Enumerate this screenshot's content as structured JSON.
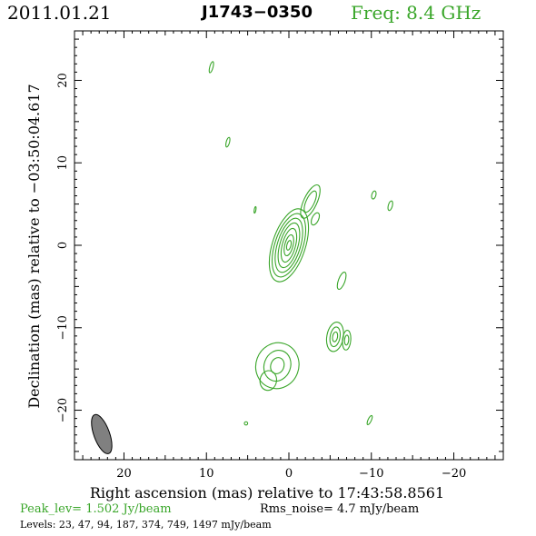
{
  "header": {
    "date": "2011.01.21",
    "source": "J1743−0350",
    "freq": "Freq:  8.4  GHz"
  },
  "footer": {
    "peak": "Peak_lev=  1.502 Jy/beam",
    "rms": "Rms_noise=   4.7 mJy/beam",
    "levels": "Levels:  23,  47,  94, 187, 374, 749, 1497 mJy/beam"
  },
  "colors": {
    "contour": "#3aa62a",
    "axes": "#000000",
    "beam_fill": "#808080"
  },
  "chart_data": {
    "type": "contour",
    "title": "J1743−0350",
    "xlabel": "Right ascension (mas) relative to 17:43:58.8561",
    "ylabel": "Declination (mas) relative to −03:50:04.617",
    "xlim": [
      26,
      -26
    ],
    "ylim": [
      -26,
      26
    ],
    "xticks": [
      20,
      10,
      0,
      -10,
      -20
    ],
    "xtick_labels": [
      "20",
      "10",
      "0",
      "−10",
      "−20"
    ],
    "yticks": [
      20,
      10,
      0,
      -10,
      -20
    ],
    "ytick_labels": [
      "20",
      "10",
      "0",
      "−10",
      "−20"
    ],
    "levels_mJy": [
      23,
      47,
      94,
      187,
      374,
      749,
      1497
    ],
    "peak_Jy_per_beam": 1.502,
    "rms_mJy_per_beam": 4.7,
    "beam": {
      "x": 22.7,
      "y": -22.9,
      "major": 5.0,
      "minor": 1.9,
      "pa_deg": 20
    },
    "components": [
      {
        "x": 0.0,
        "y": 0.0,
        "rings": [
          [
            2.0,
            4.6,
            18
          ],
          [
            1.7,
            4.0,
            18
          ],
          [
            1.4,
            3.4,
            17
          ],
          [
            1.1,
            2.8,
            16
          ],
          [
            0.8,
            2.1,
            15
          ],
          [
            0.5,
            1.3,
            14
          ],
          [
            0.25,
            0.6,
            14
          ]
        ]
      },
      {
        "x": 1.4,
        "y": -14.6,
        "rings": [
          [
            2.6,
            2.8,
            20
          ],
          [
            1.6,
            1.9,
            20
          ],
          [
            0.8,
            1.0,
            20
          ]
        ]
      },
      {
        "x": 2.5,
        "y": -16.4,
        "rings": [
          [
            1.0,
            1.2,
            10
          ]
        ]
      },
      {
        "x": -5.6,
        "y": -11.1,
        "rings": [
          [
            1.0,
            1.8,
            10
          ],
          [
            0.6,
            1.2,
            10
          ],
          [
            0.3,
            0.6,
            10
          ]
        ]
      },
      {
        "x": -7.0,
        "y": -11.5,
        "rings": [
          [
            0.5,
            1.2,
            5
          ],
          [
            0.25,
            0.6,
            5
          ]
        ]
      },
      {
        "x": -2.6,
        "y": 5.3,
        "rings": [
          [
            0.8,
            2.2,
            25
          ],
          [
            0.5,
            1.4,
            25
          ]
        ]
      },
      {
        "x": -3.2,
        "y": 3.2,
        "rings": [
          [
            0.4,
            0.8,
            25
          ]
        ]
      },
      {
        "x": -6.4,
        "y": -4.3,
        "rings": [
          [
            0.4,
            1.1,
            20
          ]
        ]
      },
      {
        "x": 9.4,
        "y": 21.6,
        "rings": [
          [
            0.2,
            0.7,
            15
          ]
        ]
      },
      {
        "x": 7.4,
        "y": 12.5,
        "rings": [
          [
            0.2,
            0.6,
            15
          ]
        ]
      },
      {
        "x": -10.3,
        "y": 6.1,
        "rings": [
          [
            0.25,
            0.5,
            15
          ]
        ]
      },
      {
        "x": -12.3,
        "y": 4.8,
        "rings": [
          [
            0.25,
            0.6,
            15
          ]
        ]
      },
      {
        "x": 4.1,
        "y": 4.3,
        "rings": [
          [
            0.1,
            0.4,
            10
          ]
        ]
      },
      {
        "x": -9.8,
        "y": -21.2,
        "rings": [
          [
            0.2,
            0.6,
            25
          ]
        ]
      },
      {
        "x": 5.2,
        "y": -21.6,
        "rings": [
          [
            0.2,
            0.2,
            0
          ]
        ]
      }
    ]
  }
}
